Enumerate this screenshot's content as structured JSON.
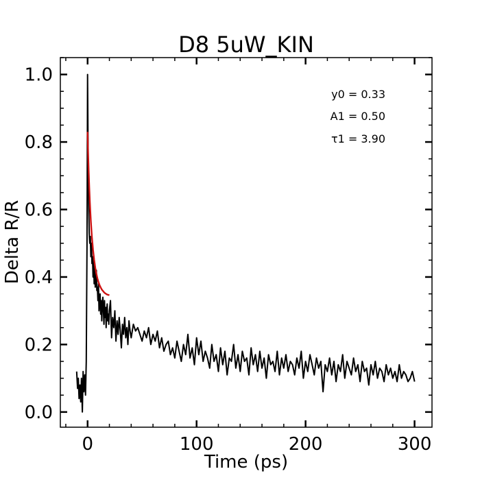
{
  "chart_data": {
    "type": "line",
    "title": "D8 5uW_KIN",
    "xlabel": "Time (ps)",
    "ylabel": "Delta R/R",
    "xlim": [
      -25,
      316
    ],
    "ylim": [
      -0.045,
      1.05
    ],
    "xticks": [
      0,
      100,
      200,
      300
    ],
    "xtick_labels": [
      "0",
      "100",
      "200",
      "300"
    ],
    "yticks": [
      0.0,
      0.2,
      0.4,
      0.6,
      0.8,
      1.0
    ],
    "ytick_labels": [
      "0.0",
      "0.2",
      "0.4",
      "0.6",
      "0.8",
      "1.0"
    ],
    "grid": false,
    "annotations": [
      "y0 = 0.33",
      "A1 = 0.50",
      "τ1 = 3.90"
    ],
    "fit_params": {
      "y0": 0.33,
      "A1": 0.5,
      "tau1": 3.9
    },
    "series": [
      {
        "color": "#000000",
        "x": [
          -10.0,
          -9.2,
          -8.5,
          -7.8,
          -7.0,
          -6.3,
          -5.6,
          -4.8,
          -4.1,
          -3.4,
          -2.6,
          -1.9,
          -1.2,
          -0.5,
          0.0,
          0.3,
          0.6,
          1.0,
          1.5,
          2.0,
          2.5,
          3.0,
          3.5,
          4.0,
          4.5,
          5.0,
          5.5,
          6.0,
          6.5,
          7.0,
          7.5,
          8.0,
          8.5,
          9.0,
          9.5,
          10.0,
          10.5,
          11.0,
          11.5,
          12.0,
          12.5,
          13.0,
          13.5,
          14.0,
          14.5,
          15.0,
          15.5,
          16.0,
          16.5,
          17.0,
          17.5,
          18.0,
          18.5,
          19.0,
          19.5,
          20.0,
          21,
          22,
          23,
          24,
          25,
          26,
          27,
          28,
          29,
          30,
          31,
          32,
          33,
          34,
          35,
          36,
          37,
          38,
          39,
          40,
          42,
          44,
          46,
          48,
          50,
          52,
          54,
          56,
          58,
          60,
          62,
          64,
          66,
          68,
          70,
          72,
          74,
          76,
          78,
          80,
          82,
          84,
          86,
          88,
          90,
          92,
          94,
          96,
          98,
          100,
          102,
          104,
          106,
          108,
          110,
          112,
          114,
          116,
          118,
          120,
          122,
          124,
          126,
          128,
          130,
          132,
          134,
          136,
          138,
          140,
          142,
          144,
          146,
          148,
          150,
          152,
          154,
          156,
          158,
          160,
          162,
          164,
          166,
          168,
          170,
          172,
          174,
          176,
          178,
          180,
          182,
          184,
          186,
          188,
          190,
          192,
          194,
          196,
          198,
          200,
          202,
          204,
          206,
          208,
          210,
          212,
          214,
          216,
          218,
          220,
          222,
          224,
          226,
          228,
          230,
          232,
          234,
          236,
          238,
          240,
          242,
          244,
          246,
          248,
          250,
          252,
          254,
          256,
          258,
          260,
          262,
          264,
          266,
          268,
          270,
          272,
          274,
          276,
          278,
          280,
          282,
          284,
          286,
          288,
          290,
          292,
          294,
          296,
          298,
          300
        ],
        "y": [
          0.12,
          0.07,
          0.1,
          0.04,
          0.08,
          0.03,
          0.1,
          0.0,
          0.12,
          0.06,
          0.11,
          0.05,
          0.15,
          0.5,
          1.0,
          0.85,
          0.7,
          0.62,
          0.53,
          0.5,
          0.52,
          0.46,
          0.5,
          0.44,
          0.46,
          0.4,
          0.45,
          0.38,
          0.44,
          0.37,
          0.4,
          0.42,
          0.36,
          0.37,
          0.33,
          0.38,
          0.3,
          0.34,
          0.35,
          0.29,
          0.33,
          0.27,
          0.32,
          0.34,
          0.3,
          0.26,
          0.33,
          0.28,
          0.31,
          0.25,
          0.3,
          0.32,
          0.27,
          0.29,
          0.26,
          0.3,
          0.33,
          0.22,
          0.28,
          0.25,
          0.3,
          0.21,
          0.27,
          0.23,
          0.28,
          0.24,
          0.19,
          0.26,
          0.23,
          0.28,
          0.22,
          0.25,
          0.2,
          0.27,
          0.24,
          0.22,
          0.26,
          0.24,
          0.25,
          0.23,
          0.21,
          0.24,
          0.22,
          0.25,
          0.2,
          0.23,
          0.21,
          0.24,
          0.19,
          0.22,
          0.18,
          0.2,
          0.21,
          0.17,
          0.19,
          0.16,
          0.21,
          0.18,
          0.15,
          0.2,
          0.17,
          0.23,
          0.16,
          0.19,
          0.14,
          0.22,
          0.17,
          0.21,
          0.15,
          0.18,
          0.16,
          0.13,
          0.2,
          0.15,
          0.17,
          0.12,
          0.19,
          0.14,
          0.18,
          0.11,
          0.16,
          0.15,
          0.2,
          0.13,
          0.17,
          0.12,
          0.18,
          0.15,
          0.16,
          0.11,
          0.19,
          0.14,
          0.17,
          0.12,
          0.18,
          0.13,
          0.16,
          0.1,
          0.17,
          0.14,
          0.15,
          0.12,
          0.18,
          0.11,
          0.16,
          0.13,
          0.17,
          0.12,
          0.15,
          0.14,
          0.11,
          0.16,
          0.13,
          0.18,
          0.1,
          0.15,
          0.12,
          0.17,
          0.14,
          0.11,
          0.16,
          0.13,
          0.15,
          0.06,
          0.14,
          0.12,
          0.16,
          0.11,
          0.15,
          0.09,
          0.14,
          0.12,
          0.17,
          0.1,
          0.15,
          0.13,
          0.11,
          0.16,
          0.12,
          0.14,
          0.09,
          0.15,
          0.12,
          0.13,
          0.08,
          0.14,
          0.11,
          0.15,
          0.1,
          0.13,
          0.12,
          0.09,
          0.14,
          0.11,
          0.13,
          0.1,
          0.12,
          0.09,
          0.14,
          0.1,
          0.12,
          0.11,
          0.09,
          0.1,
          0.12,
          0.09
        ]
      },
      {
        "color": "#cc1111",
        "x": [
          0.0,
          0.5,
          1.0,
          1.5,
          2.0,
          2.5,
          3.0,
          3.5,
          4.0,
          5.0,
          6.0,
          7.0,
          8.0,
          9.0,
          10.0,
          11.0,
          12.0,
          13.0,
          14.0,
          15.0,
          16.0,
          17.0,
          18.0,
          19.0,
          20.0
        ],
        "y": [
          0.83,
          0.767,
          0.714,
          0.669,
          0.629,
          0.595,
          0.565,
          0.54,
          0.517,
          0.48,
          0.451,
          0.428,
          0.41,
          0.396,
          0.385,
          0.376,
          0.369,
          0.363,
          0.359,
          0.355,
          0.352,
          0.35,
          0.348,
          0.347,
          0.346
        ]
      }
    ]
  }
}
